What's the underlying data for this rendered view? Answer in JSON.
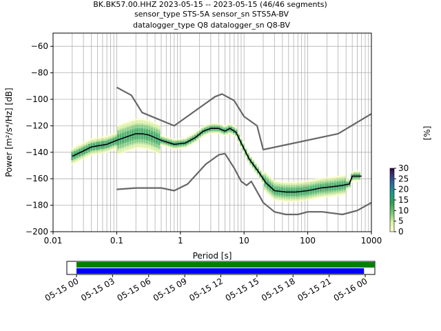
{
  "title_lines": [
    "BK.BK57.00.HHZ   2023-05-15 -- 2023-05-15  (46/46 segments)",
    "sensor_type STS-5A sensor_sn STS5A-BV",
    "datalogger_type Q8 datalogger_sn Q8-BV"
  ],
  "colorbar": {
    "label": "[%]",
    "ticks": [
      "0",
      "5",
      "10",
      "15",
      "20",
      "25",
      "30"
    ],
    "range": [
      0,
      30
    ]
  },
  "chart_data": {
    "type": "line",
    "title": "BK.BK57.00.HHZ   2023-05-15 -- 2023-05-15  (46/46 segments)",
    "xlabel": "Period [s]",
    "ylabel": "Power [m²/s⁴/Hz] [dB]",
    "xscale": "log",
    "xlim": [
      0.01,
      1000
    ],
    "ylim": [
      -200,
      -50
    ],
    "xticks": [
      0.01,
      0.1,
      1,
      10,
      100,
      1000
    ],
    "xtick_labels": [
      "0.01",
      "0.1",
      "1",
      "10",
      "100",
      "1000"
    ],
    "yticks": [
      -200,
      -180,
      -160,
      -140,
      -120,
      -100,
      -80,
      -60
    ],
    "ytick_labels": [
      "−200",
      "−180",
      "−160",
      "−140",
      "−120",
      "−100",
      "−80",
      "−60"
    ],
    "grid": true,
    "series": [
      {
        "type": "line",
        "color": "#666666",
        "points": [
          [
            0.1,
            -91
          ],
          [
            0.17,
            -97
          ],
          [
            0.25,
            -110
          ],
          [
            0.8,
            -120
          ],
          [
            3.5,
            -98
          ],
          [
            4.5,
            -96
          ],
          [
            7,
            -101
          ],
          [
            10,
            -113
          ],
          [
            16,
            -120
          ],
          [
            20,
            -138
          ],
          [
            300,
            -126
          ],
          [
            1000,
            -111
          ]
        ]
      },
      {
        "type": "line",
        "color": "#666666",
        "points": [
          [
            0.1,
            -168
          ],
          [
            0.2,
            -167
          ],
          [
            0.5,
            -167
          ],
          [
            0.8,
            -169
          ],
          [
            1.3,
            -164
          ],
          [
            2.5,
            -149
          ],
          [
            4,
            -142
          ],
          [
            5,
            -141
          ],
          [
            7,
            -152
          ],
          [
            9,
            -162
          ],
          [
            11,
            -165
          ],
          [
            13,
            -162
          ],
          [
            20,
            -178
          ],
          [
            30,
            -185
          ],
          [
            45,
            -187
          ],
          [
            70,
            -187
          ],
          [
            100,
            -185
          ],
          [
            170,
            -185
          ],
          [
            350,
            -187
          ],
          [
            600,
            -184
          ],
          [
            1000,
            -178
          ]
        ]
      },
      {
        "type": "line",
        "color": "#000000",
        "points": [
          [
            0.02,
            -143
          ],
          [
            0.03,
            -139
          ],
          [
            0.04,
            -136
          ],
          [
            0.07,
            -134
          ],
          [
            0.1,
            -131
          ],
          [
            0.15,
            -128
          ],
          [
            0.2,
            -126
          ],
          [
            0.25,
            -126
          ],
          [
            0.32,
            -127
          ],
          [
            0.5,
            -131
          ],
          [
            0.8,
            -134
          ],
          [
            1.2,
            -133
          ],
          [
            1.7,
            -129
          ],
          [
            2.3,
            -124
          ],
          [
            3,
            -122
          ],
          [
            4,
            -122
          ],
          [
            5,
            -124
          ],
          [
            6,
            -122
          ],
          [
            7.5,
            -125
          ],
          [
            9,
            -133
          ],
          [
            12,
            -145
          ],
          [
            17,
            -155
          ],
          [
            22,
            -163
          ],
          [
            30,
            -169
          ],
          [
            45,
            -170
          ],
          [
            65,
            -170
          ],
          [
            100,
            -169
          ],
          [
            160,
            -167
          ],
          [
            250,
            -166
          ],
          [
            350,
            -165
          ],
          [
            450,
            -164
          ],
          [
            500,
            -158
          ],
          [
            700,
            -158
          ]
        ]
      }
    ]
  },
  "timeline": {
    "tick_labels": [
      "05-15 00",
      "05-15 03",
      "05-15 06",
      "05-15 09",
      "05-15 12",
      "05-15 15",
      "05-15 18",
      "05-15 21",
      "05-16 00"
    ],
    "bars": [
      {
        "color": "#008000",
        "start_hour": 0,
        "end_hour": 24.8
      },
      {
        "color": "#0000ff",
        "start_hour": 0,
        "end_hour": 23.9
      }
    ],
    "range_hours": [
      0,
      25.6
    ]
  }
}
